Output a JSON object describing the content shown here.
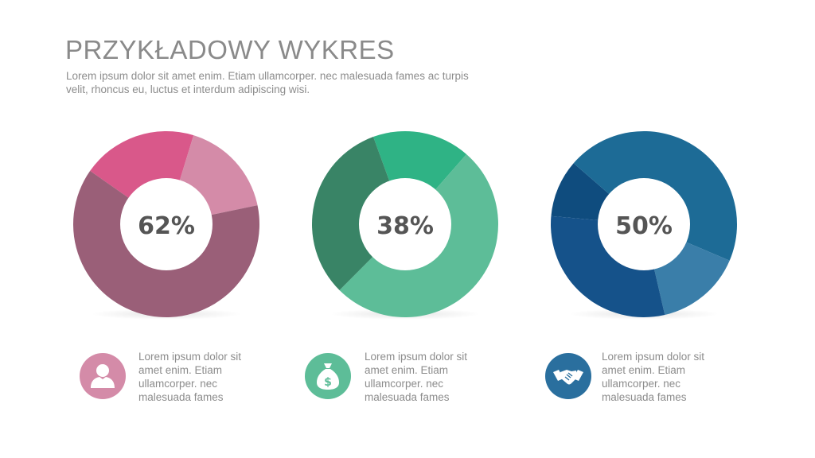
{
  "title": "PRZYKŁADOWY WYKRES",
  "subtitle": "Lorem ipsum dolor sit amet enim. Etiam ullamcorper. nec malesuada fames ac turpis velit, rhoncus eu, luctus et interdum adipiscing wisi.",
  "chart_data": [
    {
      "type": "pie",
      "center_label": "62%",
      "values": [
        20,
        17,
        63
      ],
      "colors": [
        "#d9588a",
        "#d48ba8",
        "#9a5f78"
      ]
    },
    {
      "type": "pie",
      "center_label": "38%",
      "values": [
        17,
        51,
        32
      ],
      "colors": [
        "#2fb385",
        "#5dbd98",
        "#398466"
      ]
    },
    {
      "type": "pie",
      "center_label": "50%",
      "values": [
        10,
        45,
        15,
        30
      ],
      "colors": [
        "#0f4c7e",
        "#1d6b96",
        "#3a7ea9",
        "#15528a"
      ]
    }
  ],
  "items": [
    {
      "icon": "person-icon",
      "color": "#d48ba8",
      "text": "Lorem ipsum dolor sit amet enim. Etiam ullamcorper. nec malesuada fames"
    },
    {
      "icon": "money-bag-icon",
      "color": "#5dbd98",
      "text": "Lorem ipsum dolor sit amet enim. Etiam ullamcorper. nec malesuada fames"
    },
    {
      "icon": "handshake-icon",
      "color": "#2a6f9e",
      "text": "Lorem ipsum dolor sit amet enim. Etiam ullamcorper. nec malesuada fames"
    }
  ]
}
